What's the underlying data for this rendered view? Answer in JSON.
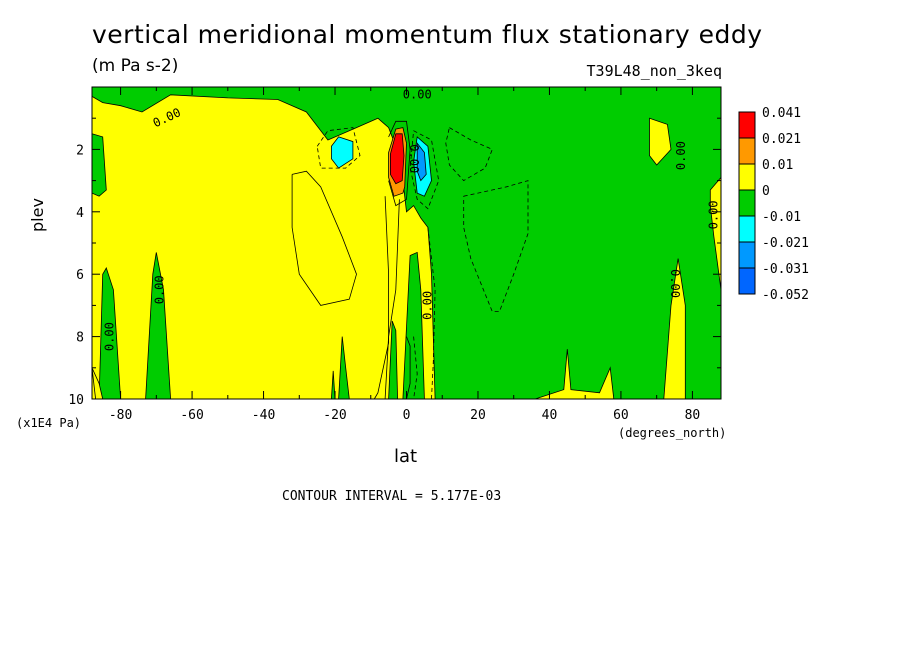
{
  "chart_data": {
    "type": "heatmap",
    "title": "vertical meridional momentum flux stationary eddy",
    "units": "(m Pa s-2)",
    "run_name": "T39L48_non_3keq",
    "xlabel": "lat",
    "xunit": "(degrees_north)",
    "ylabel": "plev",
    "yunit": "(x1E4 Pa)",
    "xlim": [
      -88,
      88
    ],
    "ylim": [
      0,
      10
    ],
    "y_inverted": true,
    "xticks": [
      -80,
      -60,
      -40,
      -20,
      0,
      20,
      40,
      60,
      80
    ],
    "xtick_labels": [
      "-80",
      "-60",
      "-40",
      "-20",
      "0",
      "20",
      "40",
      "60",
      "80"
    ],
    "yticks": [
      2,
      4,
      6,
      8,
      10
    ],
    "ytick_labels": [
      "2",
      "4",
      "6",
      "8",
      "10"
    ],
    "contour_interval_text": "CONTOUR INTERVAL = 5.177E-03",
    "contour_labels": [
      {
        "text": "0.00",
        "x": -67,
        "y": 1.0,
        "rot": -25
      },
      {
        "text": "0.00",
        "x": 3,
        "y": 0.25,
        "rot": 0
      },
      {
        "text": "0.00",
        "x": 2,
        "y": 2.3,
        "rot": 90
      },
      {
        "text": "0.00",
        "x": 77,
        "y": 2.2,
        "rot": -90
      },
      {
        "text": "0.00",
        "x": 86,
        "y": 4.1,
        "rot": -90
      },
      {
        "text": "0.00",
        "x": -69,
        "y": 6.5,
        "rot": -90
      },
      {
        "text": "0.00",
        "x": 6,
        "y": 7.0,
        "rot": -90
      },
      {
        "text": "0.00",
        "x": 75,
        "y": 6.3,
        "rot": 90
      },
      {
        "text": "0.00",
        "x": -83,
        "y": 8.0,
        "rot": -90
      }
    ],
    "legend": {
      "labels": [
        "0.041",
        "0.021",
        "0.01",
        "0",
        "-0.01",
        "-0.021",
        "-0.031",
        "-0.052"
      ],
      "colors": [
        "#ff0000",
        "#ff9900",
        "#ffff00",
        "#00cc00",
        "#00ffff",
        "#0099ff",
        "#0066ff"
      ]
    },
    "field_regions": {
      "background_color": "#ffff00",
      "green": [
        [
          [
            -88,
            0
          ],
          [
            88,
            0
          ],
          [
            88,
            10
          ],
          [
            78,
            10
          ],
          [
            78,
            7
          ],
          [
            76,
            5.5
          ],
          [
            74,
            7
          ],
          [
            72,
            10
          ],
          [
            58,
            10
          ],
          [
            57,
            9
          ],
          [
            54,
            9.8
          ],
          [
            46,
            9.7
          ],
          [
            45,
            8.4
          ],
          [
            44,
            9.7
          ],
          [
            36,
            10
          ],
          [
            20,
            10
          ],
          [
            10,
            10
          ],
          [
            8,
            10
          ],
          [
            7,
            6
          ],
          [
            6,
            4.5
          ],
          [
            4,
            4.2
          ],
          [
            2,
            3.8
          ],
          [
            0,
            4
          ],
          [
            -1,
            3
          ],
          [
            -3,
            1.9
          ],
          [
            -5,
            1.3
          ],
          [
            -8,
            1
          ],
          [
            -14,
            1.3
          ],
          [
            -22,
            1.7
          ],
          [
            -28,
            0.8
          ],
          [
            -36,
            0.4
          ],
          [
            -50,
            0.35
          ],
          [
            -66,
            0.25
          ],
          [
            -74,
            0.8
          ],
          [
            -80,
            0.6
          ],
          [
            -85,
            0.5
          ],
          [
            -88,
            0.3
          ]
        ],
        [
          [
            -88,
            1.5
          ],
          [
            -85,
            1.6
          ],
          [
            -84,
            3.3
          ],
          [
            -86,
            3.5
          ],
          [
            -88,
            3.4
          ]
        ],
        [
          [
            -86,
            10
          ],
          [
            -85,
            6
          ],
          [
            -84,
            5.8
          ],
          [
            -82,
            6.5
          ],
          [
            -80,
            10
          ]
        ],
        [
          [
            -73,
            10
          ],
          [
            -71,
            6
          ],
          [
            -70,
            5.3
          ],
          [
            -68,
            6.5
          ],
          [
            -66,
            10
          ]
        ],
        [
          [
            -19,
            10
          ],
          [
            -18,
            8
          ],
          [
            -17,
            9
          ],
          [
            -16,
            10
          ]
        ],
        [
          [
            -21,
            10
          ],
          [
            -20.5,
            9.1
          ],
          [
            -20,
            10
          ]
        ],
        [
          [
            -5,
            10
          ],
          [
            -4,
            7.5
          ],
          [
            -3,
            7.8
          ],
          [
            -2.5,
            10
          ]
        ],
        [
          [
            -1,
            10
          ],
          [
            1,
            5.4
          ],
          [
            3,
            5.3
          ],
          [
            4,
            6.5
          ],
          [
            5,
            10
          ]
        ]
      ],
      "yellow": [
        [
          [
            68,
            1.0
          ],
          [
            73,
            1.2
          ],
          [
            74,
            2.0
          ],
          [
            70,
            2.5
          ],
          [
            68,
            2.2
          ]
        ],
        [
          [
            85,
            3.3
          ],
          [
            88,
            2.9
          ],
          [
            88,
            6.5
          ],
          [
            86,
            4.8
          ],
          [
            85,
            3.8
          ]
        ],
        [
          [
            -88,
            9.0
          ],
          [
            -87,
            10
          ],
          [
            -85,
            10
          ],
          [
            -86,
            9.5
          ]
        ]
      ],
      "orange": [
        [
          [
            -5,
            2.1
          ],
          [
            -3,
            1.35
          ],
          [
            -1,
            1.3
          ],
          [
            0,
            1.8
          ],
          [
            -0.5,
            3.2
          ],
          [
            -1,
            3.4
          ],
          [
            -3.5,
            3.5
          ],
          [
            -5,
            2.9
          ]
        ]
      ],
      "red": [
        [
          [
            -4.5,
            2.15
          ],
          [
            -3,
            1.5
          ],
          [
            -1.2,
            1.5
          ],
          [
            -0.7,
            2.2
          ],
          [
            -1.2,
            3.0
          ],
          [
            -3,
            3.1
          ],
          [
            -4.5,
            2.8
          ]
        ]
      ],
      "cyan": [
        [
          [
            -21,
            1.9
          ],
          [
            -19,
            1.6
          ],
          [
            -15,
            1.75
          ],
          [
            -15,
            2.3
          ],
          [
            -19,
            2.6
          ],
          [
            -21,
            2.3
          ]
        ],
        [
          [
            3,
            1.6
          ],
          [
            6,
            1.9
          ],
          [
            7,
            3.0
          ],
          [
            5,
            3.5
          ],
          [
            3,
            3.4
          ],
          [
            2,
            2.4
          ]
        ]
      ],
      "blue": [
        [
          [
            3,
            1.8
          ],
          [
            5,
            2.1
          ],
          [
            5.5,
            2.8
          ],
          [
            4,
            3.0
          ],
          [
            3,
            2.7
          ]
        ]
      ]
    },
    "contour_lines": {
      "solid": [
        [
          [
            -32,
            2.8
          ],
          [
            -28,
            2.7
          ],
          [
            -24,
            3.2
          ],
          [
            -18,
            4.8
          ],
          [
            -14,
            6
          ],
          [
            -16,
            6.8
          ],
          [
            -24,
            7
          ],
          [
            -30,
            6
          ],
          [
            -32,
            4.5
          ],
          [
            -32,
            2.8
          ]
        ],
        [
          [
            -6,
            3.5
          ],
          [
            -5,
            6
          ],
          [
            -5,
            8.2
          ],
          [
            -8,
            9.8
          ],
          [
            -9,
            10
          ]
        ],
        [
          [
            -2,
            3.6
          ],
          [
            -3,
            6.5
          ],
          [
            -5,
            8
          ],
          [
            -6,
            10
          ]
        ],
        [
          [
            -5,
            1.6
          ],
          [
            -3,
            1.1
          ],
          [
            0,
            1.1
          ],
          [
            1,
            2
          ],
          [
            0,
            3.6
          ],
          [
            -3,
            3.8
          ],
          [
            -5,
            3
          ]
        ],
        [
          [
            0,
            8
          ],
          [
            1,
            8.3
          ],
          [
            1,
            9.5
          ],
          [
            0,
            10
          ]
        ]
      ],
      "dashed": [
        [
          [
            -25,
            1.9
          ],
          [
            -22,
            1.4
          ],
          [
            -15,
            1.3
          ],
          [
            -13,
            2.2
          ],
          [
            -17,
            2.6
          ],
          [
            -24,
            2.6
          ],
          [
            -25,
            1.9
          ]
        ],
        [
          [
            12,
            1.3
          ],
          [
            18,
            1.7
          ],
          [
            24,
            2
          ],
          [
            22,
            2.6
          ],
          [
            16,
            3
          ],
          [
            12,
            2.5
          ],
          [
            11,
            1.8
          ],
          [
            12,
            1.3
          ]
        ],
        [
          [
            16,
            3.5
          ],
          [
            28,
            3.2
          ],
          [
            34,
            3.0
          ],
          [
            34,
            4.7
          ],
          [
            30,
            6
          ],
          [
            26,
            7.2
          ],
          [
            24,
            7.2
          ],
          [
            18,
            5.5
          ],
          [
            16,
            4.5
          ],
          [
            16,
            3.5
          ]
        ],
        [
          [
            2,
            1.4
          ],
          [
            7,
            1.7
          ],
          [
            9,
            3.0
          ],
          [
            6,
            3.9
          ],
          [
            3,
            3.6
          ],
          [
            1,
            2.6
          ],
          [
            2,
            1.4
          ]
        ],
        [
          [
            6,
            4.5
          ],
          [
            8,
            6.5
          ],
          [
            7.5,
            8.8
          ],
          [
            7,
            10
          ]
        ],
        [
          [
            2,
            8
          ],
          [
            3,
            9.2
          ],
          [
            2,
            10
          ]
        ]
      ]
    }
  }
}
